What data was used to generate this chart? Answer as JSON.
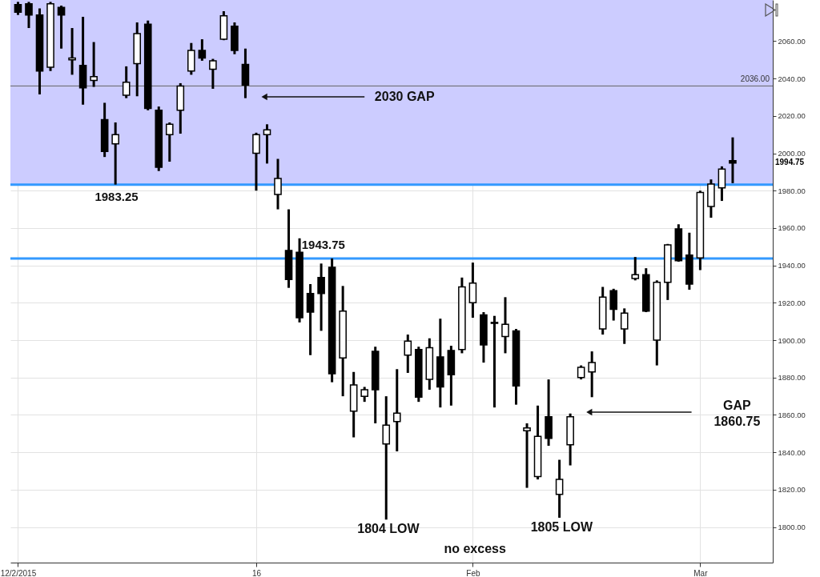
{
  "chart_data": {
    "type": "candlestick",
    "categories": [
      "12/2/2015",
      null,
      null,
      null,
      null,
      null,
      null,
      null,
      null,
      null,
      null,
      null,
      null,
      null,
      null,
      null,
      null,
      null,
      null,
      null,
      null,
      null,
      "16",
      null,
      null,
      null,
      null,
      null,
      null,
      null,
      null,
      null,
      null,
      null,
      null,
      null,
      null,
      null,
      null,
      null,
      null,
      null,
      "Feb",
      null,
      null,
      null,
      null,
      null,
      null,
      null,
      null,
      null,
      null,
      null,
      null,
      null,
      null,
      null,
      null,
      null,
      null,
      null,
      null,
      "Mar",
      null,
      null,
      null
    ],
    "ohlc": [
      [
        2079.5,
        2081,
        2074,
        2075.5
      ],
      [
        2080,
        2081,
        2067,
        2074
      ],
      [
        2074,
        2077.5,
        2031.5,
        2044
      ],
      [
        2046,
        2081,
        2044,
        2080
      ],
      [
        2078,
        2079,
        2056,
        2074
      ],
      [
        2050,
        2067,
        2042,
        2051
      ],
      [
        2047,
        2073,
        2026,
        2035
      ],
      [
        2039,
        2059.5,
        2035.5,
        2041
      ],
      [
        2018,
        2027,
        1998,
        2001
      ],
      [
        2005,
        2016.5,
        1983.25,
        2010
      ],
      [
        2031,
        2046.5,
        2029.5,
        2038
      ],
      [
        2048,
        2070,
        2030.5,
        2064
      ],
      [
        2069,
        2071,
        2023,
        2024
      ],
      [
        2023,
        2025,
        1990.5,
        1992.5
      ],
      [
        2010,
        2016.5,
        1995.5,
        2015.5
      ],
      [
        2023,
        2037.5,
        2010.5,
        2036
      ],
      [
        2044,
        2059,
        2042,
        2055
      ],
      [
        2055,
        2061,
        2049.5,
        2051
      ],
      [
        2045,
        2050.5,
        2034.5,
        2049.5
      ],
      [
        2061,
        2076,
        2060.5,
        2073.5
      ],
      [
        2068,
        2070,
        2053,
        2055
      ],
      [
        2047.5,
        2056,
        2029.5,
        2036.5
      ],
      [
        2000,
        2011,
        1980,
        2010
      ],
      [
        2010,
        2015.5,
        1994.5,
        2012.5
      ],
      [
        1978,
        1997,
        1970,
        1986.5
      ],
      [
        1948,
        1970,
        1928,
        1932.5
      ],
      [
        1947,
        1954.5,
        1909.5,
        1912
      ],
      [
        1925,
        1930,
        1892,
        1915
      ],
      [
        1933.5,
        1941,
        1905,
        1925
      ],
      [
        1939,
        1943.75,
        1877.5,
        1882
      ],
      [
        1890.5,
        1929,
        1870,
        1915.5
      ],
      [
        1862,
        1883,
        1848,
        1876
      ],
      [
        1870,
        1875,
        1867,
        1873.5
      ],
      [
        1894,
        1896.5,
        1855.5,
        1873.5
      ],
      [
        1844.5,
        1870,
        1804,
        1854.5
      ],
      [
        1856.5,
        1884.5,
        1840.5,
        1861
      ],
      [
        1892,
        1903,
        1882.5,
        1899.5
      ],
      [
        1895,
        1896.5,
        1867,
        1869.5
      ],
      [
        1879,
        1901,
        1873.5,
        1896
      ],
      [
        1891,
        1911.5,
        1864,
        1875
      ],
      [
        1894.5,
        1897,
        1865,
        1881.5
      ],
      [
        1895,
        1933.5,
        1893,
        1928.5
      ],
      [
        1920,
        1941.5,
        1912,
        1930.5
      ],
      [
        1913.5,
        1915,
        1888,
        1897.5
      ],
      [
        1909,
        1913,
        1864,
        1909.5
      ],
      [
        1902,
        1923,
        1893,
        1908.5
      ],
      [
        1905,
        1906,
        1865.5,
        1875.5
      ],
      [
        1851.5,
        1855.5,
        1821,
        1853
      ],
      [
        1827,
        1865,
        1825.5,
        1848.5
      ],
      [
        1859,
        1879,
        1843.5,
        1847.5
      ],
      [
        1817.5,
        1836,
        1805,
        1825.5
      ],
      [
        1844,
        1860.75,
        1833,
        1859
      ],
      [
        1880,
        1886.5,
        1879,
        1885.5
      ],
      [
        1883,
        1894,
        1869.5,
        1888
      ],
      [
        1906,
        1928.5,
        1903,
        1923
      ],
      [
        1926.5,
        1927.5,
        1910.5,
        1916.5
      ],
      [
        1906,
        1917,
        1898,
        1914.5
      ],
      [
        1933,
        1944.5,
        1932,
        1935
      ],
      [
        1935,
        1938.5,
        1915,
        1915.5
      ],
      [
        1900,
        1932,
        1886.5,
        1931
      ],
      [
        1931,
        1951.5,
        1921.5,
        1951
      ],
      [
        1959.5,
        1962,
        1942,
        1942.5
      ],
      [
        1945.5,
        1957.5,
        1927,
        1930
      ],
      [
        1944,
        1980,
        1937.5,
        1979
      ],
      [
        1971.5,
        1986,
        1965.5,
        1983.5
      ],
      [
        1981.5,
        1993,
        1974.5,
        1991.5
      ],
      [
        1996,
        2008.5,
        1984,
        1994.75
      ]
    ],
    "ylim": [
      1781,
      2082
    ],
    "yticks": [
      {
        "value": 1800,
        "label": "1800.00"
      },
      {
        "value": 1820,
        "label": "1820.00"
      },
      {
        "value": 1840,
        "label": "1840.00"
      },
      {
        "value": 1860,
        "label": "1860.00"
      },
      {
        "value": 1880,
        "label": "1880.00"
      },
      {
        "value": 1900,
        "label": "1900.00"
      },
      {
        "value": 1920,
        "label": "1920.00"
      },
      {
        "value": 1940,
        "label": "1940.00"
      },
      {
        "value": 1960,
        "label": "1960.00"
      },
      {
        "value": 1980,
        "label": "1980.00"
      },
      {
        "value": 2000,
        "label": "2000.00"
      },
      {
        "value": 2020,
        "label": "2020.00"
      },
      {
        "value": 2040,
        "label": "2040.00"
      },
      {
        "value": 2060,
        "label": "2060.00"
      }
    ],
    "grid": true,
    "bands": [
      {
        "axis": "y",
        "from": 1983.25,
        "to": 2082,
        "color": "#ccccff"
      }
    ],
    "ref_lines": [
      {
        "axis": "y",
        "value": 1983.25,
        "label": "1983.25",
        "color": "#3399ff"
      },
      {
        "axis": "y",
        "value": 1943.75,
        "label": "1943.75",
        "color": "#3399ff"
      },
      {
        "axis": "y",
        "value": 2036,
        "label": "2036.00",
        "color": "#666666"
      }
    ],
    "annotations": [
      "2030 GAP",
      "1804 LOW",
      "1805 LOW",
      "no excess",
      "GAP\n1860.75",
      "1994.75"
    ]
  }
}
